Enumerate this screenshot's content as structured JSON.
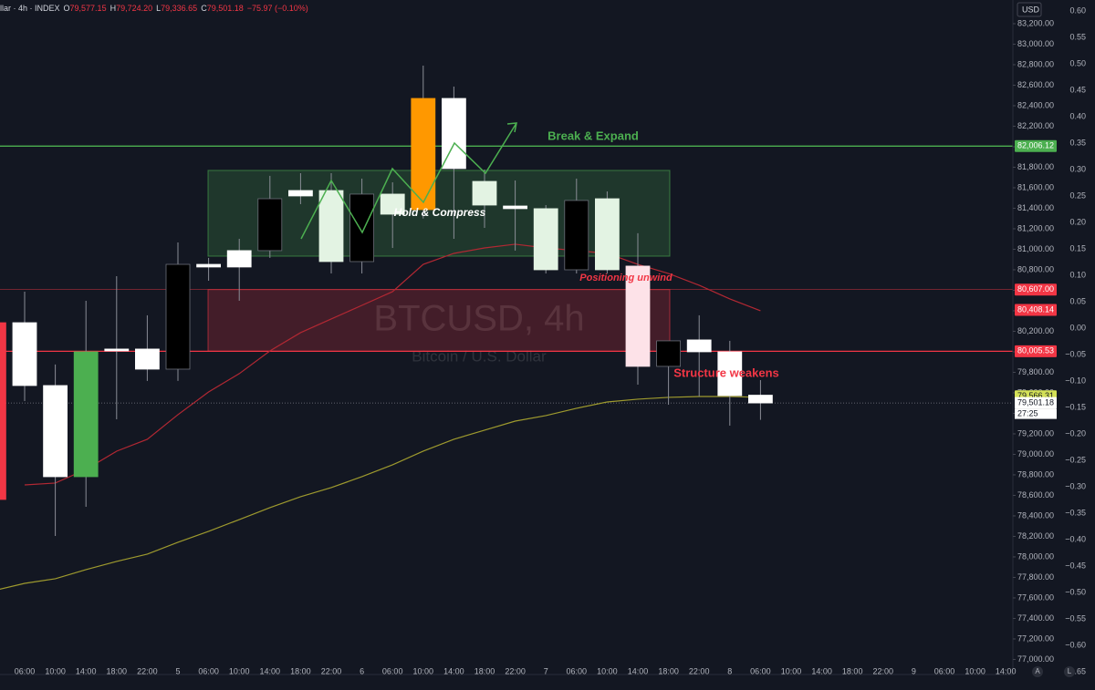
{
  "chart_data": {
    "type": "candlestick",
    "header": {
      "symbol": "llar · 4h · INDEX",
      "ohlc": [
        {
          "key": "O",
          "value": "79,577.15"
        },
        {
          "key": "H",
          "value": "79,724.20"
        },
        {
          "key": "L",
          "value": "79,336.65"
        },
        {
          "key": "C",
          "value": "79,501.18"
        }
      ],
      "change": "−75.97 (−0.10%)"
    },
    "currency": "USD",
    "watermark_title": "BTCUSD, 4h",
    "watermark_subtitle": "Bitcoin / U.S. Dollar",
    "categories": [
      null,
      "06:00",
      "10:00",
      "14:00",
      "18:00",
      "22:00",
      "5",
      "06:00",
      "10:00",
      "14:00",
      "18:00",
      "22:00",
      "6",
      "06:00",
      "10:00",
      "14:00",
      "18:00",
      "22:00",
      "7",
      "06:00",
      "10:00",
      "14:00",
      "18:00",
      "22:00",
      "8",
      "06:00",
      "10:00",
      "14:00",
      "18:00",
      "22:00",
      "9",
      "06:00",
      "10:00",
      "14:00"
    ],
    "open": [
      80284,
      80284,
      79671,
      78782,
      80027,
      80027,
      79831,
      80853,
      80987,
      80987,
      81573,
      80880,
      80880,
      81342,
      81387,
      82471,
      81431,
      81422,
      80800,
      80800,
      80800,
      80836,
      79858,
      80116,
      80000,
      79577.15,
      null,
      null,
      null,
      null,
      null,
      null,
      null,
      null
    ],
    "high": [
      80284,
      80587,
      79876,
      80498,
      80738,
      80356,
      81067,
      80916,
      81102,
      81716,
      81742,
      81742,
      81689,
      81653,
      82791,
      82587,
      81778,
      81671,
      81431,
      81689,
      81564,
      81156,
      80107,
      80356,
      80107,
      79724.2,
      null,
      null,
      null,
      null,
      null,
      null,
      null,
      null
    ],
    "low": [
      78560,
      79520,
      78204,
      78489,
      79342,
      79716,
      79716,
      80693,
      80498,
      80916,
      81440,
      80764,
      80764,
      81013,
      81300,
      81102,
      81209,
      80987,
      80764,
      80764,
      80764,
      79680,
      79484,
      79564,
      79280,
      79336.65,
      null,
      null,
      null,
      null,
      null,
      null,
      null,
      null
    ],
    "close": [
      78560,
      79671,
      78782,
      80000,
      80009,
      79831,
      80853,
      80827,
      80827,
      81493,
      81520,
      81573,
      81538,
      81538,
      82471,
      81787,
      81662,
      81396,
      81396,
      81476,
      81493,
      79858,
      80107,
      80000,
      79573,
      79501.18,
      null,
      null,
      null,
      null,
      null,
      null,
      null,
      null
    ],
    "candle_colors": [
      "#f23645",
      "#ffffff",
      "#ffffff",
      "#4caf50",
      "#ffffff",
      "#ffffff",
      "#000000",
      "#ffffff",
      "#ffffff",
      "#000000",
      "#ffffff",
      "#e3f3e3",
      "#000000",
      "#e3f3e3",
      "#ff9800",
      "#ffffff",
      "#e3f3e3",
      "#ffffff",
      "#e3f3e3",
      "#000000",
      "#e3f3e3",
      "#fde2e8",
      "#000000",
      "#ffffff",
      "#ffffff",
      "#ffffff",
      null,
      null,
      null,
      null,
      null,
      null,
      null,
      null
    ],
    "series": [
      {
        "color": "#b22833",
        "values": [
          null,
          78702,
          78720,
          78853,
          79031,
          79147,
          79387,
          79609,
          79787,
          80009,
          80187,
          80320,
          80453,
          80587,
          80853,
          80960,
          81013,
          81049,
          81013,
          80987,
          80960,
          80853,
          80764,
          80649,
          80516,
          80400,
          null,
          null,
          null,
          null,
          null,
          null,
          null,
          null
        ]
      },
      {
        "color": "#9e9a2e",
        "values": [
          77671,
          77742,
          77787,
          77876,
          77956,
          78027,
          78142,
          78249,
          78364,
          78480,
          78587,
          78676,
          78782,
          78898,
          79031,
          79147,
          79236,
          79324,
          79378,
          79449,
          79511,
          79538,
          79556,
          79564,
          79564,
          79556,
          null,
          null,
          null,
          null,
          null,
          null,
          null,
          null
        ]
      }
    ],
    "zones": [
      {
        "from": 80933,
        "to": 81769,
        "color": "#4caf50"
      },
      {
        "from": 80005.53,
        "to": 80607,
        "color": "#f23645"
      }
    ],
    "price_levels": [
      {
        "value": 82006.12,
        "label": "82,006.12",
        "color": "#4caf50",
        "line": "solid"
      },
      {
        "value": 80607,
        "label": "80,607.00",
        "color": "#f23645",
        "line": "thin"
      },
      {
        "value": 80408.14,
        "label": "80,408.14",
        "color": "#f23645",
        "line": "none"
      },
      {
        "value": 80005.53,
        "label": "80,005.53",
        "color": "#f23645",
        "line": "solid"
      },
      {
        "value": 79566.31,
        "label": "79,566.31",
        "color": "#d4e157",
        "line": "none"
      },
      {
        "value": 79501.18,
        "label": "79,501.18",
        "color": "#ffffff",
        "line": "dotted"
      }
    ],
    "countdown": "27:25",
    "annotations": [
      {
        "text": "Break & Expand",
        "color": "#4caf50"
      },
      {
        "text": "Hold & Compress",
        "color": "#ffffff"
      },
      {
        "text": "Positioning unwind",
        "color": "#f23645"
      },
      {
        "text": "Structure weakens",
        "color": "#f23645"
      }
    ],
    "ylim": [
      76853,
      83431
    ],
    "yticks": [
      {
        "value": 77000,
        "label": "77,000.00"
      },
      {
        "value": 77200,
        "label": "77,200.00"
      },
      {
        "value": 77400,
        "label": "77,400.00"
      },
      {
        "value": 77600,
        "label": "77,600.00"
      },
      {
        "value": 77800,
        "label": "77,800.00"
      },
      {
        "value": 78000,
        "label": "78,000.00"
      },
      {
        "value": 78200,
        "label": "78,200.00"
      },
      {
        "value": 78400,
        "label": "78,400.00"
      },
      {
        "value": 78600,
        "label": "78,600.00"
      },
      {
        "value": 78800,
        "label": "78,800.00"
      },
      {
        "value": 79000,
        "label": "79,000.00"
      },
      {
        "value": 79200,
        "label": "79,200.00"
      },
      {
        "value": 79400,
        "label": "79,400.00"
      },
      {
        "value": 79600,
        "label": "79,600.00"
      },
      {
        "value": 79800,
        "label": "79,800.00"
      },
      {
        "value": 80000,
        "label": "80,000.00"
      },
      {
        "value": 80200,
        "label": "80,200.00"
      },
      {
        "value": 80400,
        "label": "80,400.00"
      },
      {
        "value": 80600,
        "label": "80,600.00"
      },
      {
        "value": 80800,
        "label": "80,800.00"
      },
      {
        "value": 81000,
        "label": "81,000.00"
      },
      {
        "value": 81200,
        "label": "81,200.00"
      },
      {
        "value": 81400,
        "label": "81,400.00"
      },
      {
        "value": 81600,
        "label": "81,600.00"
      },
      {
        "value": 81800,
        "label": "81,800.00"
      },
      {
        "value": 82000,
        "label": "82,000.00"
      },
      {
        "value": 82200,
        "label": "82,200.00"
      },
      {
        "value": 82400,
        "label": "82,400.00"
      },
      {
        "value": 82600,
        "label": "82,600.00"
      },
      {
        "value": 82800,
        "label": "82,800.00"
      },
      {
        "value": 83000,
        "label": "83,000.00"
      },
      {
        "value": 83200,
        "label": "83,200.00"
      }
    ],
    "y2lim": [
      -0.655,
      0.621
    ],
    "y2ticks": [
      {
        "value": 0.6,
        "label": "0.60"
      },
      {
        "value": 0.55,
        "label": "0.55"
      },
      {
        "value": 0.5,
        "label": "0.50"
      },
      {
        "value": 0.45,
        "label": "0.45"
      },
      {
        "value": 0.4,
        "label": "0.40"
      },
      {
        "value": 0.35,
        "label": "0.35"
      },
      {
        "value": 0.3,
        "label": "0.30"
      },
      {
        "value": 0.25,
        "label": "0.25"
      },
      {
        "value": 0.2,
        "label": "0.20"
      },
      {
        "value": 0.15,
        "label": "0.15"
      },
      {
        "value": 0.1,
        "label": "0.10"
      },
      {
        "value": 0.05,
        "label": "0.05"
      },
      {
        "value": 0,
        "label": "0.00"
      },
      {
        "value": -0.05,
        "label": "−0.05"
      },
      {
        "value": -0.1,
        "label": "−0.10"
      },
      {
        "value": -0.15,
        "label": "−0.15"
      },
      {
        "value": -0.2,
        "label": "−0.20"
      },
      {
        "value": -0.25,
        "label": "−0.25"
      },
      {
        "value": -0.3,
        "label": "−0.30"
      },
      {
        "value": -0.35,
        "label": "−0.35"
      },
      {
        "value": -0.4,
        "label": "−0.40"
      },
      {
        "value": -0.45,
        "label": "−0.45"
      },
      {
        "value": -0.5,
        "label": "−0.50"
      },
      {
        "value": -0.55,
        "label": "−0.55"
      },
      {
        "value": -0.6,
        "label": "−0.60"
      },
      {
        "value": -0.65,
        "label": "−0.65"
      }
    ],
    "footer_buttons": [
      "A",
      "L"
    ]
  }
}
